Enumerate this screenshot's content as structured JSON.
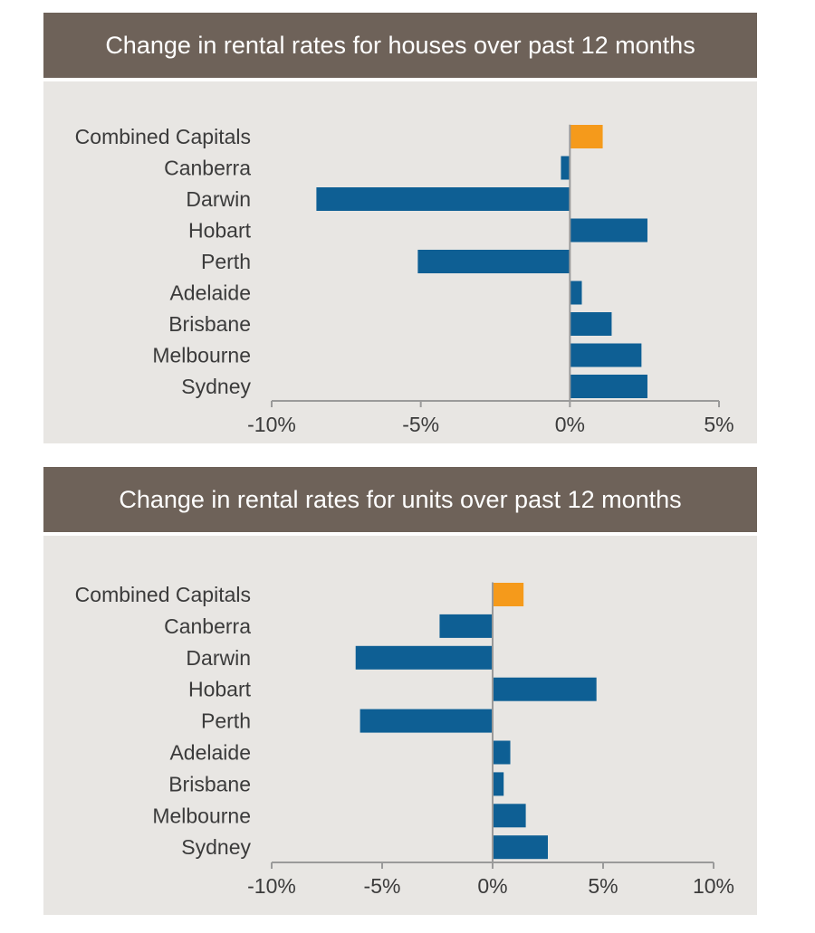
{
  "chart_data": [
    {
      "type": "bar",
      "orientation": "horizontal",
      "title": "Change in rental rates for houses over past 12 months",
      "categories": [
        "Combined Capitals",
        "Canberra",
        "Darwin",
        "Hobart",
        "Perth",
        "Adelaide",
        "Brisbane",
        "Melbourne",
        "Sydney"
      ],
      "values": [
        1.1,
        -0.3,
        -8.5,
        2.6,
        -5.1,
        0.4,
        1.4,
        2.4,
        2.6
      ],
      "xlim": [
        -10,
        5
      ],
      "ticks": [
        -10,
        -5,
        0,
        5
      ],
      "tick_labels": [
        "-10%",
        "-5%",
        "0%",
        "5%"
      ],
      "highlight_category": "Combined Capitals",
      "colors": {
        "bar": "#0e5f94",
        "highlight": "#f59a1b"
      },
      "xlabel": "",
      "ylabel": ""
    },
    {
      "type": "bar",
      "orientation": "horizontal",
      "title": "Change in rental rates for units over past 12 months",
      "categories": [
        "Combined Capitals",
        "Canberra",
        "Darwin",
        "Hobart",
        "Perth",
        "Adelaide",
        "Brisbane",
        "Melbourne",
        "Sydney"
      ],
      "values": [
        1.4,
        -2.4,
        -6.2,
        4.7,
        -6.0,
        0.8,
        0.5,
        1.5,
        2.5
      ],
      "xlim": [
        -10,
        10
      ],
      "ticks": [
        -10,
        -5,
        0,
        5,
        10
      ],
      "tick_labels": [
        "-10%",
        "-5%",
        "0%",
        "5%",
        "10%"
      ],
      "highlight_category": "Combined Capitals",
      "colors": {
        "bar": "#0e5f94",
        "highlight": "#f59a1b"
      },
      "xlabel": "",
      "ylabel": ""
    }
  ]
}
